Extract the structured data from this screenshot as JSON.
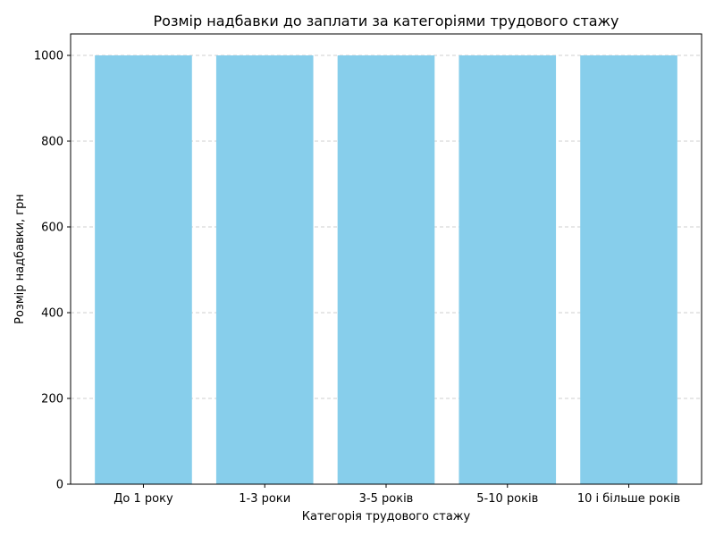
{
  "chart_data": {
    "type": "bar",
    "title": "Розмір надбавки до заплати за категоріями трудового стажу",
    "xlabel": "Категорія трудового стажу",
    "ylabel": "Розмір надбавки, грн",
    "categories": [
      "До 1 року",
      "1-3 роки",
      "3-5 років",
      "5-10 років",
      "10 і більше років"
    ],
    "values": [
      1000,
      1000,
      1000,
      1000,
      1000
    ],
    "ylim": [
      0,
      1050
    ],
    "yticks": [
      0,
      200,
      400,
      600,
      800,
      1000
    ],
    "grid": "y-dashed",
    "bar_color": "#87CEEB"
  }
}
